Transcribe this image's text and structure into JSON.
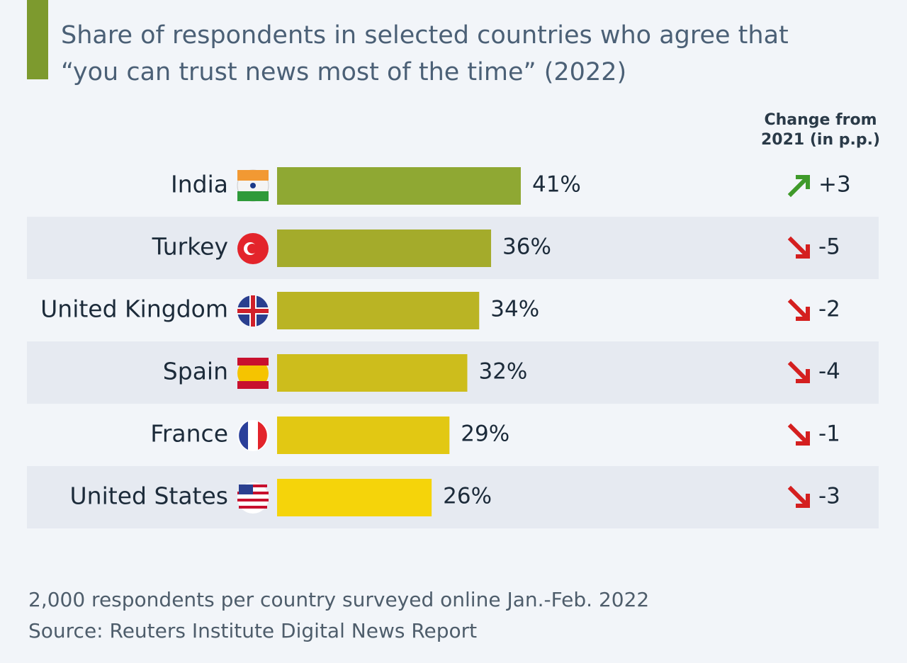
{
  "chart_data": {
    "type": "bar",
    "subtitle": "Share of respondents in selected countries who agree that “you can trust news most of the time” (2022)",
    "categories": [
      "India",
      "Turkey",
      "United Kingdom",
      "Spain",
      "France",
      "United States"
    ],
    "values": [
      41,
      36,
      34,
      32,
      29,
      26
    ],
    "value_labels": [
      "41%",
      "36%",
      "34%",
      "32%",
      "29%",
      "26%"
    ],
    "colors": [
      "#8fa833",
      "#a4ab2b",
      "#bab424",
      "#cdbd1c",
      "#e2c813",
      "#f5d40a"
    ],
    "change_header": "Change from 2021 (in p.p.)",
    "changes": [
      3,
      -5,
      -2,
      -4,
      -1,
      -3
    ],
    "change_labels": [
      "+3",
      "-5",
      "-2",
      "-4",
      "-1",
      "-3"
    ],
    "note": "2,000 respondents per country surveyed online Jan.-Feb. 2022",
    "source": "Source: Reuters Institute Digital News Report"
  }
}
